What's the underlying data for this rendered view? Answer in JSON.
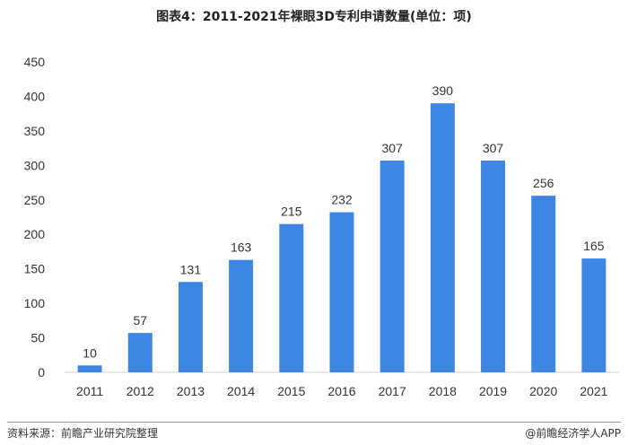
{
  "chart_data": {
    "type": "bar",
    "title": "图表4：2011-2021年裸眼3D专利申请数量(单位：项)",
    "categories": [
      "2011",
      "2012",
      "2013",
      "2014",
      "2015",
      "2016",
      "2017",
      "2018",
      "2019",
      "2020",
      "2021"
    ],
    "values": [
      10,
      57,
      131,
      163,
      215,
      232,
      307,
      390,
      307,
      256,
      165
    ],
    "ylim": [
      0,
      450
    ],
    "yticks": [
      0,
      50,
      100,
      150,
      200,
      250,
      300,
      350,
      400,
      450
    ],
    "grid": false,
    "bar_color": "#3d86e4"
  },
  "footer": {
    "source": "资料来源：前瞻产业研究院整理",
    "brand": "@前瞻经济学人APP"
  }
}
